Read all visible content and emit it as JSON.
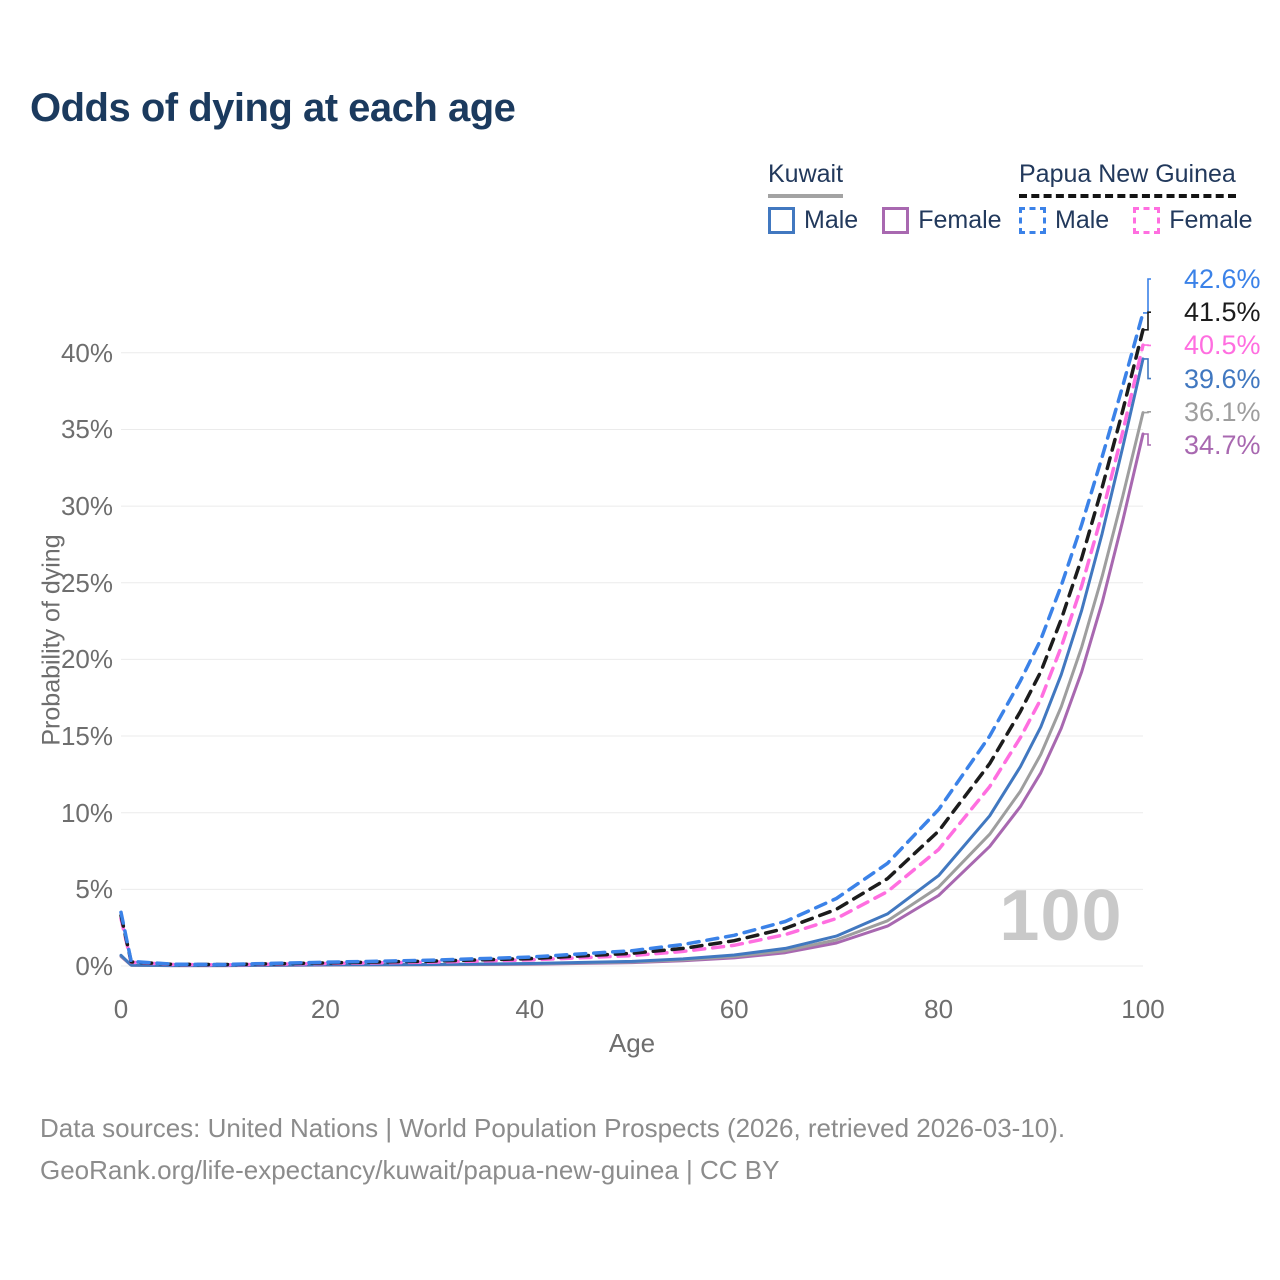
{
  "title": "Odds of dying at each age",
  "watermark": "100",
  "legend": {
    "groups": [
      {
        "country": "Kuwait",
        "underline_style": "solid",
        "underline_color": "#a3a3a3",
        "items": [
          {
            "label": "Male",
            "color": "#4178c0",
            "dashed": false
          },
          {
            "label": "Female",
            "color": "#a868b0",
            "dashed": false
          }
        ]
      },
      {
        "country": "Papua New Guinea",
        "underline_style": "dashed",
        "underline_color": "#141414",
        "items": [
          {
            "label": "Male",
            "color": "#3b82e8",
            "dashed": true
          },
          {
            "label": "Female",
            "color": "#ff6ee0",
            "dashed": true
          }
        ]
      }
    ]
  },
  "chart_data": {
    "type": "line",
    "title": "Odds of dying at each age",
    "xlabel": "Age",
    "ylabel": "Probability of dying",
    "xlim": [
      0,
      100
    ],
    "ylim": [
      0,
      44
    ],
    "x_ticks": [
      0,
      20,
      40,
      60,
      80,
      100
    ],
    "y_ticks": [
      0,
      5,
      10,
      15,
      20,
      25,
      30,
      35,
      40
    ],
    "y_tick_suffix": "%",
    "grid": "horizontal",
    "legend_position": "top-right",
    "x": [
      0,
      1,
      5,
      10,
      20,
      30,
      40,
      50,
      55,
      60,
      65,
      70,
      75,
      80,
      85,
      88,
      90,
      92,
      94,
      96,
      98,
      100
    ],
    "series": [
      {
        "id": "png-male",
        "name": "Papua New Guinea — Male",
        "country": "Papua New Guinea",
        "sex": "Male",
        "color": "#3b82e8",
        "line_style": "dashed",
        "flag": "papua-new-guinea",
        "end_value": 42.6,
        "end_label": "42.6%",
        "values": [
          3.5,
          0.3,
          0.12,
          0.1,
          0.25,
          0.37,
          0.58,
          1.0,
          1.4,
          2.0,
          2.9,
          4.4,
          6.7,
          10.2,
          15.0,
          18.6,
          21.3,
          24.8,
          28.8,
          33.2,
          37.8,
          42.6
        ]
      },
      {
        "id": "png-both",
        "name": "Papua New Guinea — Both sexes",
        "country": "Papua New Guinea",
        "sex": "Both sexes",
        "color": "#1c1c1c",
        "line_style": "dashed",
        "flag": "papua-new-guinea",
        "end_value": 41.5,
        "end_label": "41.5%",
        "values": [
          3.3,
          0.27,
          0.11,
          0.09,
          0.2,
          0.31,
          0.48,
          0.83,
          1.15,
          1.65,
          2.45,
          3.7,
          5.7,
          8.8,
          13.2,
          16.6,
          19.2,
          22.6,
          26.6,
          31.2,
          36.2,
          41.5
        ]
      },
      {
        "id": "png-female",
        "name": "Papua New Guinea — Female",
        "country": "Papua New Guinea",
        "sex": "Female",
        "color": "#ff6ee0",
        "line_style": "dashed",
        "flag": "papua-new-guinea",
        "end_value": 40.5,
        "end_label": "40.5%",
        "values": [
          3.1,
          0.24,
          0.1,
          0.08,
          0.16,
          0.25,
          0.4,
          0.68,
          0.95,
          1.35,
          2.05,
          3.1,
          4.85,
          7.6,
          11.7,
          14.9,
          17.4,
          20.8,
          24.8,
          29.5,
          34.8,
          40.5
        ]
      },
      {
        "id": "kuwait-male",
        "name": "Kuwait — Male",
        "country": "Kuwait",
        "sex": "Male",
        "color": "#4178c0",
        "line_style": "solid",
        "flag": "kuwait",
        "end_value": 39.6,
        "end_label": "39.6%",
        "values": [
          0.7,
          0.06,
          0.03,
          0.03,
          0.08,
          0.1,
          0.16,
          0.3,
          0.46,
          0.72,
          1.15,
          1.95,
          3.4,
          5.9,
          9.8,
          13.0,
          15.6,
          19.0,
          23.2,
          28.2,
          33.8,
          39.6
        ]
      },
      {
        "id": "kuwait-both",
        "name": "Kuwait — Both sexes",
        "country": "Kuwait",
        "sex": "Both sexes",
        "color": "#9e9e9e",
        "line_style": "solid",
        "flag": "kuwait",
        "end_value": 36.1,
        "end_label": "36.1%",
        "values": [
          0.66,
          0.055,
          0.028,
          0.027,
          0.07,
          0.09,
          0.14,
          0.26,
          0.4,
          0.62,
          1.0,
          1.7,
          2.95,
          5.15,
          8.6,
          11.4,
          13.8,
          16.9,
          20.8,
          25.4,
          30.6,
          36.1
        ]
      },
      {
        "id": "kuwait-female",
        "name": "Kuwait — Female",
        "country": "Kuwait",
        "sex": "Female",
        "color": "#a868b0",
        "line_style": "solid",
        "flag": "kuwait",
        "end_value": 34.7,
        "end_label": "34.7%",
        "values": [
          0.62,
          0.05,
          0.025,
          0.025,
          0.06,
          0.08,
          0.12,
          0.22,
          0.34,
          0.53,
          0.87,
          1.5,
          2.6,
          4.6,
          7.8,
          10.4,
          12.6,
          15.5,
          19.2,
          23.7,
          29.0,
          34.7
        ]
      }
    ]
  },
  "footer": {
    "line1": "Data sources: United Nations | World Population Prospects (2026, retrieved 2026-03-10).",
    "line2": "GeoRank.org/life-expectancy/kuwait/papua-new-guinea | CC BY"
  }
}
